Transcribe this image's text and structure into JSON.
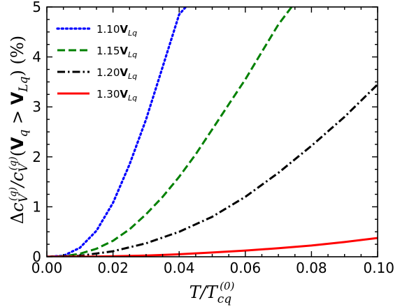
{
  "chart_data": {
    "type": "line",
    "xlabel": "T/T_cq^(0)",
    "ylabel": "Δc_V^(q)/c_V^(q)(V_q > V_Lq) (%)",
    "xlim": [
      0.0,
      0.1
    ],
    "ylim": [
      0,
      5
    ],
    "x_ticks": [
      "0.00",
      "0.02",
      "0.04",
      "0.06",
      "0.08",
      "0.10"
    ],
    "y_ticks": [
      "0",
      "1",
      "2",
      "3",
      "4",
      "5"
    ],
    "grid": false,
    "legend_position": "top-left",
    "series": [
      {
        "name": "1.10V_Lq",
        "color": "#0000ff",
        "style": "dotted",
        "x": [
          0.0,
          0.005,
          0.01,
          0.015,
          0.02,
          0.025,
          0.03,
          0.035,
          0.04,
          0.042
        ],
        "y": [
          0.0,
          0.02,
          0.18,
          0.52,
          1.08,
          1.85,
          2.75,
          3.8,
          4.85,
          5.0
        ]
      },
      {
        "name": "1.15V_Lq",
        "color": "#008000",
        "style": "dashed",
        "x": [
          0.0,
          0.005,
          0.01,
          0.015,
          0.02,
          0.025,
          0.03,
          0.035,
          0.04,
          0.045,
          0.05,
          0.055,
          0.06,
          0.065,
          0.07,
          0.074
        ],
        "y": [
          0.0,
          0.01,
          0.06,
          0.16,
          0.32,
          0.55,
          0.85,
          1.2,
          1.6,
          2.05,
          2.55,
          3.05,
          3.55,
          4.1,
          4.65,
          5.0
        ]
      },
      {
        "name": "1.20V_Lq",
        "color": "#000000",
        "style": "dashdot",
        "x": [
          0.0,
          0.01,
          0.02,
          0.03,
          0.04,
          0.05,
          0.06,
          0.07,
          0.08,
          0.09,
          0.1
        ],
        "y": [
          0.0,
          0.02,
          0.11,
          0.27,
          0.5,
          0.8,
          1.2,
          1.68,
          2.22,
          2.8,
          3.45
        ]
      },
      {
        "name": "1.30V_Lq",
        "color": "#ff0000",
        "style": "solid",
        "x": [
          0.0,
          0.01,
          0.02,
          0.03,
          0.04,
          0.05,
          0.06,
          0.07,
          0.08,
          0.09,
          0.1
        ],
        "y": [
          0.0,
          0.002,
          0.01,
          0.025,
          0.05,
          0.085,
          0.125,
          0.17,
          0.225,
          0.295,
          0.375
        ]
      }
    ]
  }
}
